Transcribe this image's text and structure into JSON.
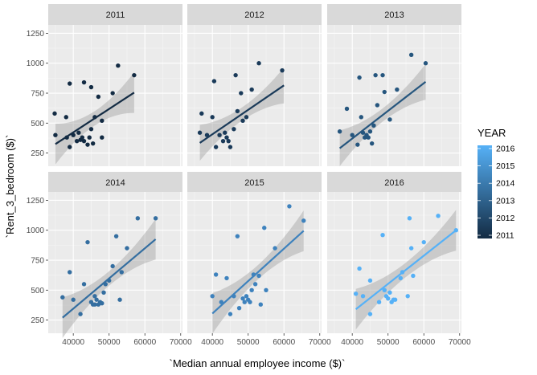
{
  "chart_data": {
    "type": "scatter",
    "facet_by": "YEAR",
    "xlabel": "`Median annual employee income ($)`",
    "ylabel": "`Rent_3_bedroom ($)`",
    "xlim": [
      33000,
      70500
    ],
    "ylim": [
      140,
      1320
    ],
    "x_ticks": [
      40000,
      50000,
      60000,
      70000
    ],
    "y_ticks": [
      250,
      500,
      750,
      1000,
      1250
    ],
    "x_tick_labels": [
      "40000",
      "50000",
      "60000",
      "70000"
    ],
    "y_tick_labels": [
      "250",
      "500",
      "750",
      "1000",
      "1250"
    ],
    "grid": true,
    "smooth": "lm with confidence band",
    "legend": {
      "title": "YEAR",
      "placement": "right",
      "labels": [
        "2016",
        "2015",
        "2014",
        "2013",
        "2012",
        "2011"
      ],
      "color_low": "#132b43",
      "color_high": "#56b1f7"
    },
    "panels": [
      {
        "label": "2011",
        "color": "#132b43",
        "fit": {
          "x0": 35000,
          "y0": 325,
          "x1": 57000,
          "y1": 755
        },
        "band_halfwidth": {
          "min": 60,
          "max": 170
        },
        "points": [
          {
            "x": 34800,
            "y": 580
          },
          {
            "x": 35000,
            "y": 400
          },
          {
            "x": 38000,
            "y": 550
          },
          {
            "x": 38200,
            "y": 380
          },
          {
            "x": 39000,
            "y": 830
          },
          {
            "x": 39000,
            "y": 300
          },
          {
            "x": 40000,
            "y": 400
          },
          {
            "x": 41000,
            "y": 350
          },
          {
            "x": 41500,
            "y": 420
          },
          {
            "x": 42000,
            "y": 360
          },
          {
            "x": 42500,
            "y": 380
          },
          {
            "x": 43000,
            "y": 350
          },
          {
            "x": 43000,
            "y": 840
          },
          {
            "x": 44000,
            "y": 320
          },
          {
            "x": 44500,
            "y": 380
          },
          {
            "x": 45000,
            "y": 450
          },
          {
            "x": 45000,
            "y": 800
          },
          {
            "x": 45500,
            "y": 330
          },
          {
            "x": 46000,
            "y": 550
          },
          {
            "x": 47000,
            "y": 720
          },
          {
            "x": 48000,
            "y": 380
          },
          {
            "x": 48000,
            "y": 520
          },
          {
            "x": 51000,
            "y": 750
          },
          {
            "x": 52500,
            "y": 980
          },
          {
            "x": 57000,
            "y": 900
          }
        ]
      },
      {
        "label": "2012",
        "color": "#1a3a59",
        "fit": {
          "x0": 36500,
          "y0": 335,
          "x1": 60000,
          "y1": 815
        },
        "band_halfwidth": {
          "min": 55,
          "max": 150
        },
        "points": [
          {
            "x": 36500,
            "y": 420
          },
          {
            "x": 37000,
            "y": 580
          },
          {
            "x": 38500,
            "y": 400
          },
          {
            "x": 40000,
            "y": 550
          },
          {
            "x": 40500,
            "y": 850
          },
          {
            "x": 41000,
            "y": 300
          },
          {
            "x": 42000,
            "y": 400
          },
          {
            "x": 43000,
            "y": 350
          },
          {
            "x": 43500,
            "y": 420
          },
          {
            "x": 44000,
            "y": 380
          },
          {
            "x": 44500,
            "y": 350
          },
          {
            "x": 45000,
            "y": 300
          },
          {
            "x": 46000,
            "y": 450
          },
          {
            "x": 46500,
            "y": 900
          },
          {
            "x": 47000,
            "y": 600
          },
          {
            "x": 48000,
            "y": 750
          },
          {
            "x": 48500,
            "y": 520
          },
          {
            "x": 49500,
            "y": 550
          },
          {
            "x": 51000,
            "y": 780
          },
          {
            "x": 53000,
            "y": 1000
          },
          {
            "x": 59500,
            "y": 940
          }
        ]
      },
      {
        "label": "2013",
        "color": "#26567e",
        "fit": {
          "x0": 36500,
          "y0": 290,
          "x1": 60500,
          "y1": 845
        },
        "band_halfwidth": {
          "min": 55,
          "max": 150
        },
        "points": [
          {
            "x": 36500,
            "y": 430
          },
          {
            "x": 38500,
            "y": 620
          },
          {
            "x": 40000,
            "y": 400
          },
          {
            "x": 41500,
            "y": 320
          },
          {
            "x": 42000,
            "y": 880
          },
          {
            "x": 42500,
            "y": 550
          },
          {
            "x": 43000,
            "y": 420
          },
          {
            "x": 43500,
            "y": 380
          },
          {
            "x": 44000,
            "y": 400
          },
          {
            "x": 44500,
            "y": 380
          },
          {
            "x": 45000,
            "y": 430
          },
          {
            "x": 45500,
            "y": 330
          },
          {
            "x": 46000,
            "y": 480
          },
          {
            "x": 46500,
            "y": 900
          },
          {
            "x": 47000,
            "y": 650
          },
          {
            "x": 48500,
            "y": 900
          },
          {
            "x": 49000,
            "y": 760
          },
          {
            "x": 50500,
            "y": 530
          },
          {
            "x": 52500,
            "y": 780
          },
          {
            "x": 56500,
            "y": 1070
          },
          {
            "x": 60500,
            "y": 1000
          }
        ]
      },
      {
        "label": "2014",
        "color": "#346ea0",
        "fit": {
          "x0": 37000,
          "y0": 270,
          "x1": 63000,
          "y1": 925
        },
        "band_halfwidth": {
          "min": 60,
          "max": 170
        },
        "points": [
          {
            "x": 37000,
            "y": 440
          },
          {
            "x": 39000,
            "y": 650
          },
          {
            "x": 40000,
            "y": 420
          },
          {
            "x": 42000,
            "y": 300
          },
          {
            "x": 43000,
            "y": 550
          },
          {
            "x": 44000,
            "y": 900
          },
          {
            "x": 45000,
            "y": 400
          },
          {
            "x": 45500,
            "y": 380
          },
          {
            "x": 46000,
            "y": 450
          },
          {
            "x": 46000,
            "y": 380
          },
          {
            "x": 46500,
            "y": 420
          },
          {
            "x": 47000,
            "y": 380
          },
          {
            "x": 47500,
            "y": 400
          },
          {
            "x": 48000,
            "y": 390
          },
          {
            "x": 48500,
            "y": 480
          },
          {
            "x": 49000,
            "y": 550
          },
          {
            "x": 50000,
            "y": 580
          },
          {
            "x": 51000,
            "y": 700
          },
          {
            "x": 52000,
            "y": 950
          },
          {
            "x": 53000,
            "y": 420
          },
          {
            "x": 53500,
            "y": 650
          },
          {
            "x": 55000,
            "y": 850
          },
          {
            "x": 58000,
            "y": 1100
          },
          {
            "x": 63000,
            "y": 1100
          }
        ]
      },
      {
        "label": "2015",
        "color": "#3e82bd",
        "fit": {
          "x0": 40000,
          "y0": 305,
          "x1": 65500,
          "y1": 995
        },
        "band_halfwidth": {
          "min": 60,
          "max": 170
        },
        "points": [
          {
            "x": 40000,
            "y": 450
          },
          {
            "x": 41000,
            "y": 630
          },
          {
            "x": 42500,
            "y": 400
          },
          {
            "x": 44000,
            "y": 600
          },
          {
            "x": 45000,
            "y": 300
          },
          {
            "x": 46000,
            "y": 450
          },
          {
            "x": 47000,
            "y": 950
          },
          {
            "x": 47500,
            "y": 350
          },
          {
            "x": 48500,
            "y": 430
          },
          {
            "x": 49000,
            "y": 400
          },
          {
            "x": 49500,
            "y": 450
          },
          {
            "x": 50000,
            "y": 420
          },
          {
            "x": 50500,
            "y": 400
          },
          {
            "x": 51000,
            "y": 500
          },
          {
            "x": 51500,
            "y": 630
          },
          {
            "x": 52000,
            "y": 550
          },
          {
            "x": 53000,
            "y": 620
          },
          {
            "x": 53500,
            "y": 380
          },
          {
            "x": 54500,
            "y": 1020
          },
          {
            "x": 55000,
            "y": 500
          },
          {
            "x": 57500,
            "y": 850
          },
          {
            "x": 61500,
            "y": 1200
          },
          {
            "x": 65500,
            "y": 1080
          }
        ]
      },
      {
        "label": "2016",
        "color": "#56b1f7",
        "fit": {
          "x0": 41000,
          "y0": 340,
          "x1": 69000,
          "y1": 1000
        },
        "band_halfwidth": {
          "min": 60,
          "max": 170
        },
        "points": [
          {
            "x": 41000,
            "y": 470
          },
          {
            "x": 42000,
            "y": 680
          },
          {
            "x": 43000,
            "y": 450
          },
          {
            "x": 45000,
            "y": 580
          },
          {
            "x": 45000,
            "y": 300
          },
          {
            "x": 47500,
            "y": 400
          },
          {
            "x": 48500,
            "y": 960
          },
          {
            "x": 49000,
            "y": 500
          },
          {
            "x": 49500,
            "y": 450
          },
          {
            "x": 50000,
            "y": 430
          },
          {
            "x": 50500,
            "y": 480
          },
          {
            "x": 51000,
            "y": 400
          },
          {
            "x": 51500,
            "y": 420
          },
          {
            "x": 52000,
            "y": 420
          },
          {
            "x": 53500,
            "y": 600
          },
          {
            "x": 54000,
            "y": 650
          },
          {
            "x": 55500,
            "y": 450
          },
          {
            "x": 56000,
            "y": 1100
          },
          {
            "x": 56500,
            "y": 850
          },
          {
            "x": 57000,
            "y": 620
          },
          {
            "x": 60000,
            "y": 900
          },
          {
            "x": 64000,
            "y": 1120
          },
          {
            "x": 69000,
            "y": 1000
          }
        ]
      }
    ]
  }
}
